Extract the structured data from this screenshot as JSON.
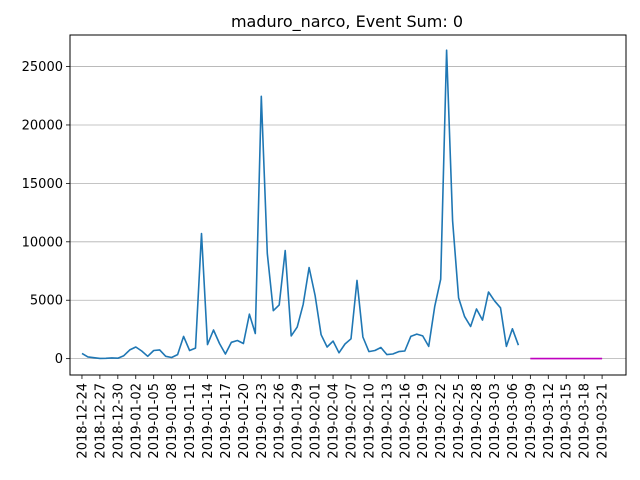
{
  "chart_data": {
    "type": "line",
    "title": "maduro_narco, Event Sum: 0",
    "xlabel": "",
    "ylabel": "",
    "ylim": [
      -1400,
      27700
    ],
    "yticks": [
      0,
      5000,
      10000,
      15000,
      20000,
      25000
    ],
    "grid": "horizontal",
    "xticks": [
      "2018-12-24",
      "2018-12-27",
      "2018-12-30",
      "2019-01-02",
      "2019-01-05",
      "2019-01-08",
      "2019-01-11",
      "2019-01-14",
      "2019-01-17",
      "2019-01-20",
      "2019-01-23",
      "2019-01-26",
      "2019-01-29",
      "2019-02-01",
      "2019-02-04",
      "2019-02-07",
      "2019-02-10",
      "2019-02-13",
      "2019-02-16",
      "2019-02-19",
      "2019-02-22",
      "2019-02-25",
      "2019-02-28",
      "2019-03-03",
      "2019-03-06",
      "2019-03-09",
      "2019-03-12",
      "2019-03-15",
      "2019-03-18",
      "2019-03-21"
    ],
    "xrange": [
      "2018-12-22",
      "2019-03-25"
    ],
    "series": [
      {
        "color": "#1f77b4",
        "x": [
          "2018-12-24",
          "2018-12-25",
          "2018-12-26",
          "2018-12-27",
          "2018-12-28",
          "2018-12-29",
          "2018-12-30",
          "2018-12-31",
          "2019-01-01",
          "2019-01-02",
          "2019-01-03",
          "2019-01-04",
          "2019-01-05",
          "2019-01-06",
          "2019-01-07",
          "2019-01-08",
          "2019-01-09",
          "2019-01-10",
          "2019-01-11",
          "2019-01-12",
          "2019-01-13",
          "2019-01-14",
          "2019-01-15",
          "2019-01-16",
          "2019-01-17",
          "2019-01-18",
          "2019-01-19",
          "2019-01-20",
          "2019-01-21",
          "2019-01-22",
          "2019-01-23",
          "2019-01-24",
          "2019-01-25",
          "2019-01-26",
          "2019-01-27",
          "2019-01-28",
          "2019-01-29",
          "2019-01-30",
          "2019-01-31",
          "2019-02-01",
          "2019-02-02",
          "2019-02-03",
          "2019-02-04",
          "2019-02-05",
          "2019-02-06",
          "2019-02-07",
          "2019-02-08",
          "2019-02-09",
          "2019-02-10",
          "2019-02-11",
          "2019-02-12",
          "2019-02-13",
          "2019-02-14",
          "2019-02-15",
          "2019-02-16",
          "2019-02-17",
          "2019-02-18",
          "2019-02-19",
          "2019-02-20",
          "2019-02-21",
          "2019-02-22",
          "2019-02-23",
          "2019-02-24",
          "2019-02-25",
          "2019-02-26",
          "2019-02-27",
          "2019-02-28",
          "2019-03-01",
          "2019-03-02",
          "2019-03-03",
          "2019-03-04",
          "2019-03-05",
          "2019-03-06",
          "2019-03-07",
          "2019-03-08"
        ],
        "values": [
          450,
          150,
          80,
          20,
          30,
          60,
          40,
          250,
          750,
          1000,
          650,
          200,
          700,
          750,
          200,
          100,
          350,
          1900,
          700,
          900,
          10700,
          1200,
          2450,
          1300,
          400,
          1400,
          1550,
          1300,
          3800,
          2150,
          22450,
          9000,
          4100,
          4600,
          9250,
          1950,
          2700,
          4650,
          7800,
          5400,
          2050,
          1000,
          1500,
          500,
          1250,
          1700,
          6700,
          1850,
          600,
          700,
          950,
          350,
          400,
          600,
          650,
          1900,
          2100,
          1950,
          1050,
          4450,
          6800,
          26400,
          11800,
          5200,
          3600,
          2750,
          4250,
          3300,
          5700,
          4950,
          4350,
          1050,
          2550,
          1150,
          null
        ]
      },
      {
        "color": "#bf00bf",
        "x": [
          "2019-03-09",
          "2019-03-10",
          "2019-03-11",
          "2019-03-12",
          "2019-03-13",
          "2019-03-14",
          "2019-03-15",
          "2019-03-16",
          "2019-03-17",
          "2019-03-18",
          "2019-03-19",
          "2019-03-20",
          "2019-03-21"
        ],
        "values": [
          0,
          0,
          0,
          0,
          0,
          0,
          0,
          0,
          0,
          0,
          0,
          0,
          0
        ]
      }
    ]
  }
}
